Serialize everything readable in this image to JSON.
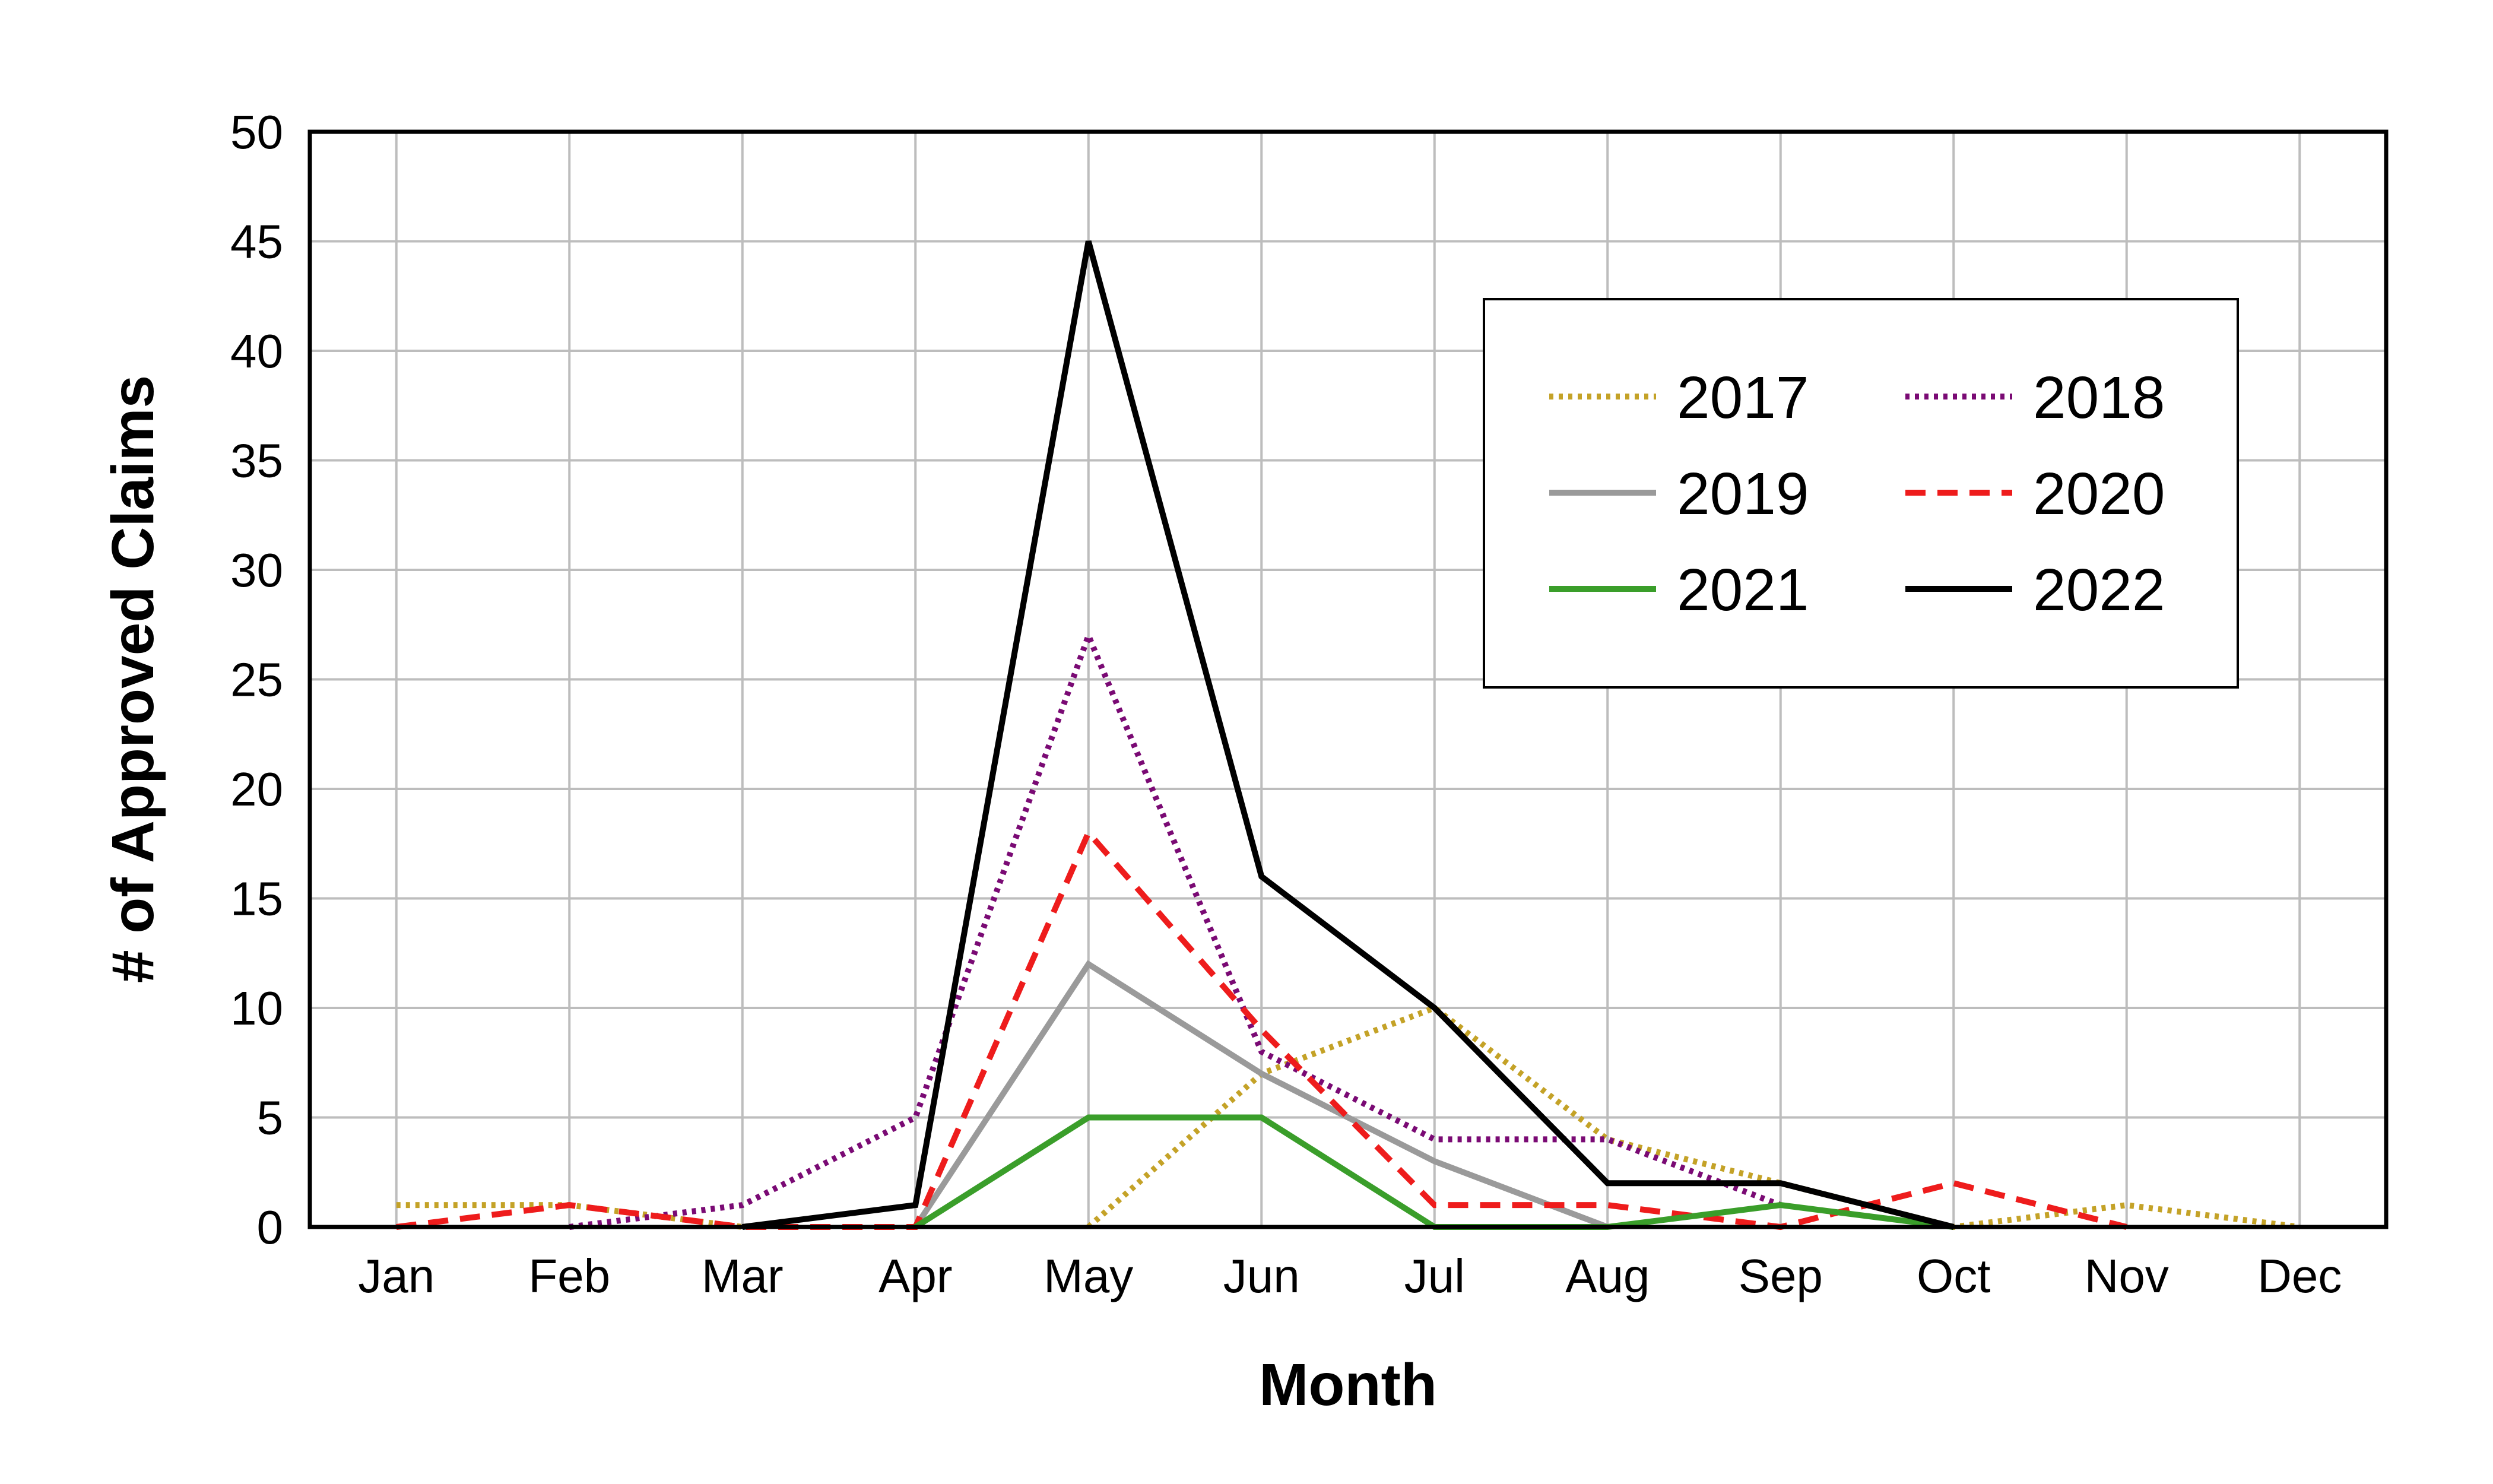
{
  "chart_data": {
    "type": "line",
    "xlabel": "Month",
    "ylabel": "# of Approved Claims",
    "categories": [
      "Jan",
      "Feb",
      "Mar",
      "Apr",
      "May",
      "Jun",
      "Jul",
      "Aug",
      "Sep",
      "Oct",
      "Nov",
      "Dec"
    ],
    "ylim": [
      0,
      50
    ],
    "yticks": [
      0,
      5,
      10,
      15,
      20,
      25,
      30,
      35,
      40,
      45,
      50
    ],
    "grid": true,
    "legend_position": "top-right",
    "series": [
      {
        "name": "2017",
        "color": "#c4a227",
        "dash": "dotted",
        "values": [
          1,
          1,
          0,
          null,
          0,
          7,
          10,
          4,
          2,
          0,
          1,
          0
        ]
      },
      {
        "name": "2018",
        "color": "#7a0a74",
        "dash": "dotted",
        "values": [
          null,
          0,
          1,
          5,
          27,
          8,
          4,
          4,
          1,
          null,
          null,
          null
        ]
      },
      {
        "name": "2019",
        "color": "#9a9a9a",
        "dash": "solid",
        "values": [
          null,
          null,
          null,
          0,
          12,
          7,
          3,
          0,
          null,
          null,
          null,
          null
        ]
      },
      {
        "name": "2020",
        "color": "#ee1c1c",
        "dash": "dashed",
        "values": [
          0,
          1,
          0,
          0,
          18,
          9,
          1,
          1,
          0,
          2,
          0,
          null
        ]
      },
      {
        "name": "2021",
        "color": "#3a9e2a",
        "dash": "solid",
        "values": [
          null,
          null,
          null,
          0,
          5,
          5,
          0,
          0,
          1,
          0,
          null,
          null
        ]
      },
      {
        "name": "2022",
        "color": "#000000",
        "dash": "solid",
        "values": [
          null,
          null,
          0,
          1,
          45,
          16,
          10,
          2,
          2,
          0,
          null,
          null
        ]
      }
    ]
  }
}
